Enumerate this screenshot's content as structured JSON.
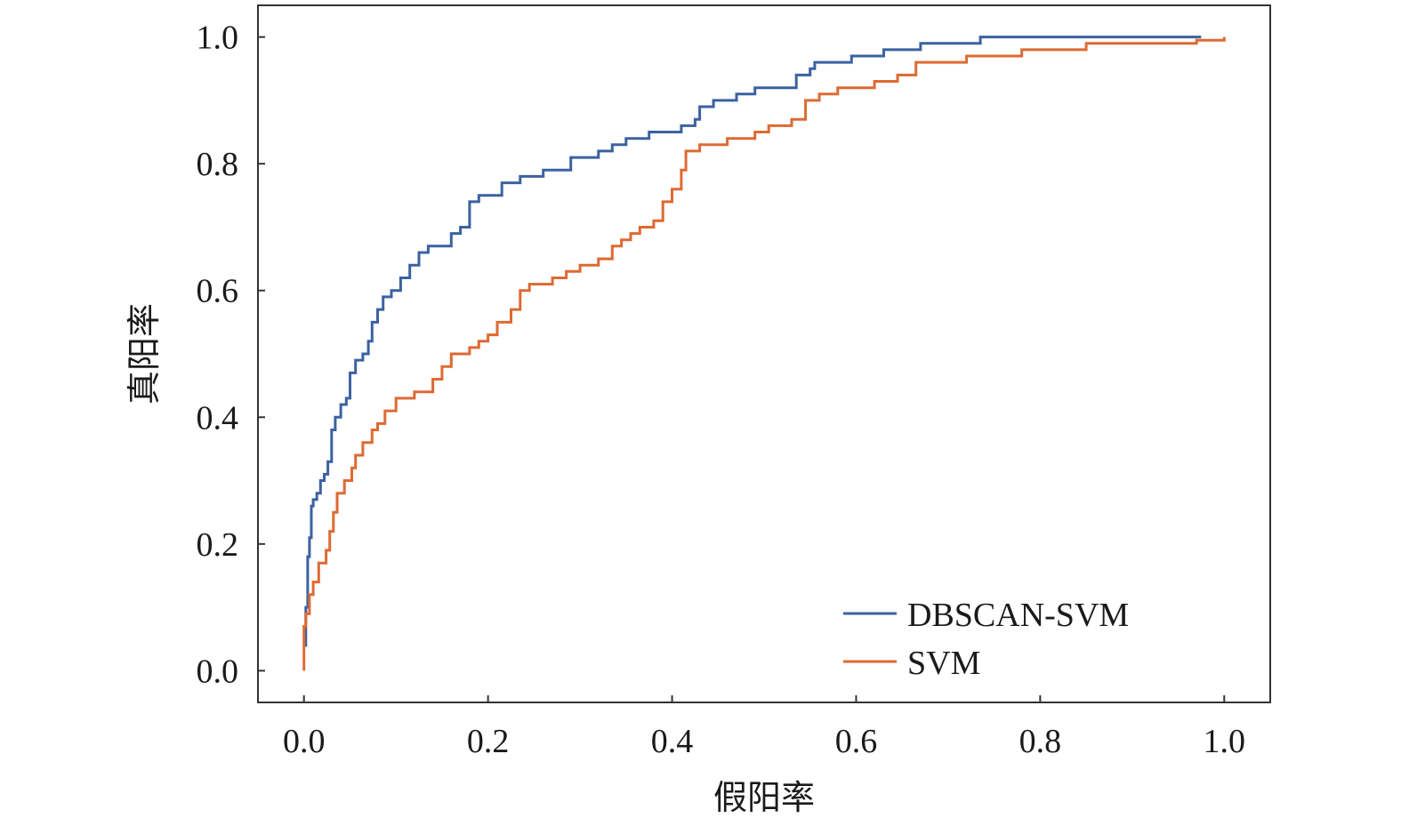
{
  "chart_data": {
    "type": "line",
    "xlabel": "假阳率",
    "ylabel": "真阳率",
    "xlim": [
      -0.05,
      1.05
    ],
    "ylim": [
      -0.05,
      1.05
    ],
    "xticks": [
      "0.0",
      "0.2",
      "0.4",
      "0.6",
      "0.8",
      "1.0"
    ],
    "yticks": [
      "0.0",
      "0.2",
      "0.4",
      "0.6",
      "0.8",
      "1.0"
    ],
    "grid": false,
    "legend_position": "bottom-right",
    "series": [
      {
        "name": "DBSCAN-SVM",
        "color": "#3b62a0",
        "points": [
          [
            0.0,
            0.04
          ],
          [
            0.002,
            0.1
          ],
          [
            0.004,
            0.18
          ],
          [
            0.006,
            0.21
          ],
          [
            0.008,
            0.26
          ],
          [
            0.01,
            0.27
          ],
          [
            0.014,
            0.28
          ],
          [
            0.018,
            0.3
          ],
          [
            0.022,
            0.31
          ],
          [
            0.026,
            0.33
          ],
          [
            0.03,
            0.38
          ],
          [
            0.034,
            0.4
          ],
          [
            0.04,
            0.42
          ],
          [
            0.046,
            0.43
          ],
          [
            0.05,
            0.47
          ],
          [
            0.056,
            0.49
          ],
          [
            0.064,
            0.5
          ],
          [
            0.07,
            0.52
          ],
          [
            0.074,
            0.55
          ],
          [
            0.08,
            0.57
          ],
          [
            0.086,
            0.59
          ],
          [
            0.095,
            0.6
          ],
          [
            0.105,
            0.62
          ],
          [
            0.115,
            0.64
          ],
          [
            0.125,
            0.66
          ],
          [
            0.135,
            0.67
          ],
          [
            0.16,
            0.69
          ],
          [
            0.17,
            0.7
          ],
          [
            0.18,
            0.74
          ],
          [
            0.19,
            0.75
          ],
          [
            0.215,
            0.77
          ],
          [
            0.235,
            0.78
          ],
          [
            0.26,
            0.79
          ],
          [
            0.29,
            0.81
          ],
          [
            0.32,
            0.82
          ],
          [
            0.335,
            0.83
          ],
          [
            0.35,
            0.84
          ],
          [
            0.375,
            0.85
          ],
          [
            0.41,
            0.86
          ],
          [
            0.425,
            0.87
          ],
          [
            0.43,
            0.89
          ],
          [
            0.445,
            0.9
          ],
          [
            0.47,
            0.91
          ],
          [
            0.49,
            0.92
          ],
          [
            0.535,
            0.94
          ],
          [
            0.55,
            0.95
          ],
          [
            0.555,
            0.96
          ],
          [
            0.595,
            0.97
          ],
          [
            0.63,
            0.98
          ],
          [
            0.67,
            0.99
          ],
          [
            0.735,
            1.0
          ],
          [
            0.975,
            1.0
          ]
        ]
      },
      {
        "name": "SVM",
        "color": "#dd6a33",
        "points": [
          [
            0.0,
            0.0
          ],
          [
            0.0,
            0.07
          ],
          [
            0.002,
            0.09
          ],
          [
            0.006,
            0.12
          ],
          [
            0.01,
            0.14
          ],
          [
            0.016,
            0.17
          ],
          [
            0.024,
            0.19
          ],
          [
            0.028,
            0.22
          ],
          [
            0.032,
            0.25
          ],
          [
            0.036,
            0.28
          ],
          [
            0.044,
            0.3
          ],
          [
            0.052,
            0.32
          ],
          [
            0.056,
            0.34
          ],
          [
            0.064,
            0.36
          ],
          [
            0.074,
            0.38
          ],
          [
            0.08,
            0.39
          ],
          [
            0.088,
            0.41
          ],
          [
            0.1,
            0.43
          ],
          [
            0.12,
            0.44
          ],
          [
            0.14,
            0.46
          ],
          [
            0.15,
            0.48
          ],
          [
            0.16,
            0.5
          ],
          [
            0.18,
            0.51
          ],
          [
            0.19,
            0.52
          ],
          [
            0.2,
            0.53
          ],
          [
            0.21,
            0.55
          ],
          [
            0.225,
            0.57
          ],
          [
            0.235,
            0.6
          ],
          [
            0.245,
            0.61
          ],
          [
            0.27,
            0.62
          ],
          [
            0.285,
            0.63
          ],
          [
            0.3,
            0.64
          ],
          [
            0.32,
            0.65
          ],
          [
            0.335,
            0.67
          ],
          [
            0.345,
            0.68
          ],
          [
            0.355,
            0.69
          ],
          [
            0.365,
            0.7
          ],
          [
            0.38,
            0.71
          ],
          [
            0.39,
            0.74
          ],
          [
            0.4,
            0.76
          ],
          [
            0.41,
            0.79
          ],
          [
            0.415,
            0.82
          ],
          [
            0.43,
            0.83
          ],
          [
            0.46,
            0.84
          ],
          [
            0.49,
            0.85
          ],
          [
            0.505,
            0.86
          ],
          [
            0.53,
            0.87
          ],
          [
            0.545,
            0.9
          ],
          [
            0.56,
            0.91
          ],
          [
            0.58,
            0.92
          ],
          [
            0.62,
            0.93
          ],
          [
            0.645,
            0.94
          ],
          [
            0.665,
            0.96
          ],
          [
            0.72,
            0.97
          ],
          [
            0.78,
            0.98
          ],
          [
            0.85,
            0.99
          ],
          [
            0.97,
            0.995
          ],
          [
            1.0,
            1.0
          ]
        ]
      }
    ]
  }
}
